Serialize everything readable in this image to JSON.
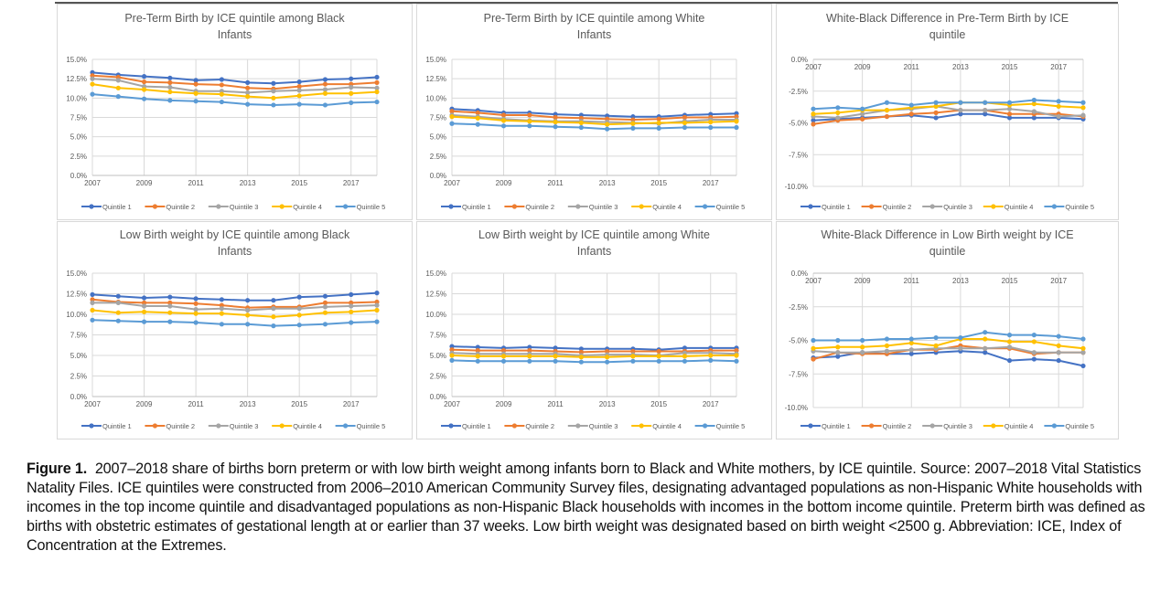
{
  "caption": {
    "label": "Figure 1.",
    "text": "2007–2018 share of births born preterm or with low birth weight among infants born to Black and White mothers, by ICE quintile. Source: 2007–2018 Vital Statistics Natality Files. ICE quintiles were constructed from 2006–2010 American Community Survey files, designating advantaged populations as non-Hispanic White households with incomes in the top income quintile and disadvantaged populations as non-Hispanic Black households with incomes in the bottom income quintile. Preterm birth was defined as births with obstetric estimates of gestational length at or earlier than 37 weeks. Low birth weight was designated based on birth weight <2500 g. Abbreviation: ICE, Index of Concentration at the Extremes."
  },
  "colors": {
    "Quintile 1": "#4472c4",
    "Quintile 2": "#ed7d31",
    "Quintile 3": "#a5a5a5",
    "Quintile 4": "#ffc000",
    "Quintile 5": "#5b9bd5"
  },
  "chart_data": [
    {
      "type": "line",
      "title": "Pre-Term Birth by ICE quintile among Black Infants",
      "title_lines": [
        "Pre-Term Birth by ICE quintile among Black",
        "Infants"
      ],
      "x": [
        2007,
        2008,
        2009,
        2010,
        2011,
        2012,
        2013,
        2014,
        2015,
        2016,
        2017,
        2018
      ],
      "xtick_labels": [
        "2007",
        "2009",
        "2011",
        "2013",
        "2015",
        "2017"
      ],
      "ylim": [
        0,
        15
      ],
      "ytick_labels": [
        "0.0%",
        "2.5%",
        "5.0%",
        "7.5%",
        "10.0%",
        "12.5%",
        "15.0%"
      ],
      "grid": true,
      "legend": "bottom",
      "series": [
        {
          "name": "Quintile 1",
          "values": [
            13.3,
            13.0,
            12.8,
            12.6,
            12.3,
            12.4,
            12.0,
            11.9,
            12.1,
            12.4,
            12.5,
            12.7
          ]
        },
        {
          "name": "Quintile 2",
          "values": [
            12.9,
            12.7,
            12.1,
            12.0,
            11.8,
            11.7,
            11.3,
            11.2,
            11.5,
            11.8,
            11.8,
            12.0
          ]
        },
        {
          "name": "Quintile 3",
          "values": [
            12.5,
            12.3,
            11.5,
            11.4,
            10.9,
            10.9,
            10.7,
            10.9,
            11.0,
            11.1,
            11.4,
            11.3
          ]
        },
        {
          "name": "Quintile 4",
          "values": [
            11.8,
            11.3,
            11.1,
            10.8,
            10.6,
            10.5,
            10.2,
            10.0,
            10.3,
            10.6,
            10.6,
            10.8
          ]
        },
        {
          "name": "Quintile 5",
          "values": [
            10.5,
            10.2,
            9.9,
            9.7,
            9.6,
            9.5,
            9.2,
            9.1,
            9.2,
            9.1,
            9.4,
            9.5
          ]
        }
      ]
    },
    {
      "type": "line",
      "title": "Pre-Term Birth by ICE quintile among White Infants",
      "title_lines": [
        "Pre-Term Birth by ICE quintile among White",
        "Infants"
      ],
      "x": [
        2007,
        2008,
        2009,
        2010,
        2011,
        2012,
        2013,
        2014,
        2015,
        2016,
        2017,
        2018
      ],
      "xtick_labels": [
        "2007",
        "2009",
        "2011",
        "2013",
        "2015",
        "2017"
      ],
      "ylim": [
        0,
        15
      ],
      "ytick_labels": [
        "0.0%",
        "2.5%",
        "5.0%",
        "7.5%",
        "10.0%",
        "12.5%",
        "15.0%"
      ],
      "grid": true,
      "legend": "bottom",
      "series": [
        {
          "name": "Quintile 1",
          "values": [
            8.6,
            8.4,
            8.1,
            8.1,
            7.9,
            7.8,
            7.7,
            7.6,
            7.6,
            7.8,
            7.9,
            8.0
          ]
        },
        {
          "name": "Quintile 2",
          "values": [
            8.3,
            8.1,
            7.8,
            7.8,
            7.5,
            7.4,
            7.3,
            7.2,
            7.3,
            7.5,
            7.5,
            7.6
          ]
        },
        {
          "name": "Quintile 3",
          "values": [
            7.8,
            7.6,
            7.3,
            7.1,
            7.0,
            7.0,
            6.9,
            6.8,
            6.7,
            7.0,
            7.2,
            7.2
          ]
        },
        {
          "name": "Quintile 4",
          "values": [
            7.6,
            7.4,
            7.1,
            7.0,
            6.9,
            6.8,
            6.6,
            6.7,
            6.8,
            6.8,
            6.9,
            7.0
          ]
        },
        {
          "name": "Quintile 5",
          "values": [
            6.7,
            6.6,
            6.4,
            6.4,
            6.3,
            6.2,
            6.0,
            6.1,
            6.1,
            6.2,
            6.2,
            6.2
          ]
        }
      ]
    },
    {
      "type": "line",
      "title": "White-Black Difference in Pre-Term Birth by ICE quintile",
      "title_lines": [
        "White-Black Difference in Pre-Term Birth by ICE",
        "quintile"
      ],
      "x": [
        2007,
        2008,
        2009,
        2010,
        2011,
        2012,
        2013,
        2014,
        2015,
        2016,
        2017,
        2018
      ],
      "xtick_labels": [
        "2007",
        "2009",
        "2011",
        "2013",
        "2015",
        "2017"
      ],
      "ylim": [
        -10,
        0
      ],
      "ytick_labels": [
        "-10.0%",
        "-7.5%",
        "-5.0%",
        "-2.5%",
        "0.0%"
      ],
      "grid": true,
      "legend": "bottom",
      "series": [
        {
          "name": "Quintile 1",
          "values": [
            -4.8,
            -4.7,
            -4.6,
            -4.5,
            -4.4,
            -4.6,
            -4.3,
            -4.3,
            -4.6,
            -4.6,
            -4.6,
            -4.7
          ]
        },
        {
          "name": "Quintile 2",
          "values": [
            -5.1,
            -4.8,
            -4.7,
            -4.5,
            -4.3,
            -4.2,
            -4.0,
            -4.0,
            -4.3,
            -4.3,
            -4.3,
            -4.5
          ]
        },
        {
          "name": "Quintile 3",
          "values": [
            -4.5,
            -4.6,
            -4.3,
            -4.0,
            -3.9,
            -3.7,
            -4.0,
            -4.0,
            -3.9,
            -4.1,
            -4.5,
            -4.4
          ]
        },
        {
          "name": "Quintile 4",
          "values": [
            -4.3,
            -4.2,
            -4.0,
            -4.0,
            -3.8,
            -3.7,
            -3.4,
            -3.4,
            -3.6,
            -3.5,
            -3.7,
            -3.8
          ]
        },
        {
          "name": "Quintile 5",
          "values": [
            -3.9,
            -3.8,
            -3.9,
            -3.4,
            -3.6,
            -3.4,
            -3.4,
            -3.4,
            -3.4,
            -3.2,
            -3.3,
            -3.4
          ]
        }
      ]
    },
    {
      "type": "line",
      "title": "Low Birth weight by ICE quintile among Black Infants",
      "title_lines": [
        "Low Birth weight by ICE quintile among Black",
        "Infants"
      ],
      "x": [
        2007,
        2008,
        2009,
        2010,
        2011,
        2012,
        2013,
        2014,
        2015,
        2016,
        2017,
        2018
      ],
      "xtick_labels": [
        "2007",
        "2009",
        "2011",
        "2013",
        "2015",
        "2017"
      ],
      "ylim": [
        0,
        15
      ],
      "ytick_labels": [
        "0.0%",
        "2.5%",
        "5.0%",
        "7.5%",
        "10.0%",
        "12.5%",
        "15.0%"
      ],
      "grid": true,
      "legend": "bottom",
      "series": [
        {
          "name": "Quintile 1",
          "values": [
            12.4,
            12.2,
            12.0,
            12.1,
            11.9,
            11.8,
            11.7,
            11.7,
            12.1,
            12.2,
            12.4,
            12.6
          ]
        },
        {
          "name": "Quintile 2",
          "values": [
            11.8,
            11.5,
            11.4,
            11.4,
            11.3,
            11.1,
            10.8,
            10.9,
            10.9,
            11.4,
            11.4,
            11.5
          ]
        },
        {
          "name": "Quintile 3",
          "values": [
            11.4,
            11.4,
            11.0,
            11.0,
            10.6,
            10.7,
            10.5,
            10.7,
            10.7,
            10.9,
            11.0,
            11.1
          ]
        },
        {
          "name": "Quintile 4",
          "values": [
            10.5,
            10.2,
            10.3,
            10.2,
            10.1,
            10.1,
            9.9,
            9.7,
            9.9,
            10.2,
            10.3,
            10.5
          ]
        },
        {
          "name": "Quintile 5",
          "values": [
            9.3,
            9.2,
            9.1,
            9.1,
            9.0,
            8.8,
            8.8,
            8.6,
            8.7,
            8.8,
            9.0,
            9.1
          ]
        }
      ]
    },
    {
      "type": "line",
      "title": "Low Birth weight by ICE quintile among White Infants",
      "title_lines": [
        "Low Birth weight by ICE quintile among White",
        "Infants"
      ],
      "x": [
        2007,
        2008,
        2009,
        2010,
        2011,
        2012,
        2013,
        2014,
        2015,
        2016,
        2017,
        2018
      ],
      "xtick_labels": [
        "2007",
        "2009",
        "2011",
        "2013",
        "2015",
        "2017"
      ],
      "ylim": [
        0,
        15
      ],
      "ytick_labels": [
        "0.0%",
        "2.5%",
        "5.0%",
        "7.5%",
        "10.0%",
        "12.5%",
        "15.0%"
      ],
      "grid": true,
      "legend": "bottom",
      "series": [
        {
          "name": "Quintile 1",
          "values": [
            6.1,
            6.0,
            5.9,
            6.0,
            5.9,
            5.8,
            5.8,
            5.8,
            5.7,
            5.9,
            5.9,
            5.9
          ]
        },
        {
          "name": "Quintile 2",
          "values": [
            5.7,
            5.6,
            5.6,
            5.6,
            5.5,
            5.4,
            5.5,
            5.5,
            5.5,
            5.5,
            5.6,
            5.6
          ]
        },
        {
          "name": "Quintile 3",
          "values": [
            5.3,
            5.2,
            5.2,
            5.2,
            5.2,
            5.0,
            5.1,
            5.1,
            5.0,
            5.3,
            5.3,
            5.2
          ]
        },
        {
          "name": "Quintile 4",
          "values": [
            5.0,
            4.9,
            4.9,
            4.9,
            4.9,
            4.8,
            4.8,
            4.9,
            4.9,
            4.9,
            5.0,
            5.0
          ]
        },
        {
          "name": "Quintile 5",
          "values": [
            4.4,
            4.3,
            4.3,
            4.3,
            4.3,
            4.2,
            4.2,
            4.3,
            4.3,
            4.3,
            4.4,
            4.3
          ]
        }
      ]
    },
    {
      "type": "line",
      "title": "White-Black Difference in Low Birth weight by ICE quintile",
      "title_lines": [
        "White-Black Difference in Low Birth weight by ICE",
        "quintile"
      ],
      "x": [
        2007,
        2008,
        2009,
        2010,
        2011,
        2012,
        2013,
        2014,
        2015,
        2016,
        2017,
        2018
      ],
      "xtick_labels": [
        "2007",
        "2009",
        "2011",
        "2013",
        "2015",
        "2017"
      ],
      "ylim": [
        -10,
        0
      ],
      "ytick_labels": [
        "-10.0%",
        "-7.5%",
        "-5.0%",
        "-2.5%",
        "0.0%"
      ],
      "grid": true,
      "legend": "bottom",
      "series": [
        {
          "name": "Quintile 1",
          "values": [
            -6.3,
            -6.2,
            -5.9,
            -6.0,
            -6.0,
            -5.9,
            -5.8,
            -5.9,
            -6.5,
            -6.4,
            -6.5,
            -6.9
          ]
        },
        {
          "name": "Quintile 2",
          "values": [
            -6.4,
            -5.9,
            -6.0,
            -6.0,
            -5.7,
            -5.7,
            -5.4,
            -5.6,
            -5.6,
            -6.0,
            -5.9,
            -5.9
          ]
        },
        {
          "name": "Quintile 3",
          "values": [
            -5.8,
            -5.9,
            -5.9,
            -5.8,
            -5.7,
            -5.6,
            -5.6,
            -5.6,
            -5.5,
            -5.9,
            -5.9,
            -5.9
          ]
        },
        {
          "name": "Quintile 4",
          "values": [
            -5.6,
            -5.5,
            -5.5,
            -5.4,
            -5.2,
            -5.4,
            -4.9,
            -4.9,
            -5.1,
            -5.1,
            -5.4,
            -5.6
          ]
        },
        {
          "name": "Quintile 5",
          "values": [
            -5.0,
            -5.0,
            -5.0,
            -4.9,
            -4.9,
            -4.8,
            -4.8,
            -4.4,
            -4.6,
            -4.6,
            -4.7,
            -4.9
          ]
        }
      ]
    }
  ]
}
